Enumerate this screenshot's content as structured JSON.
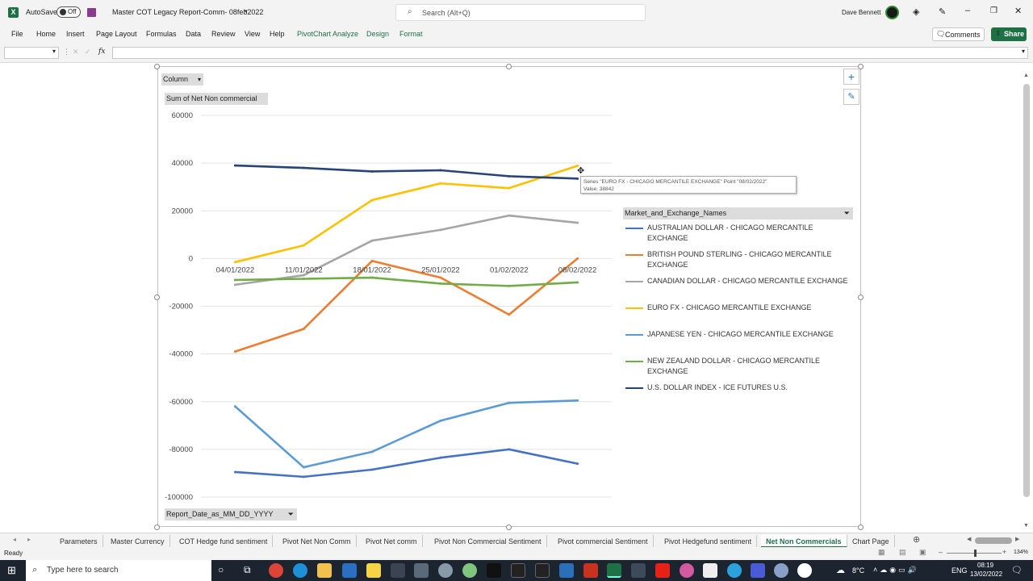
{
  "app": {
    "autosave_label": "AutoSave",
    "autosave_state": "Off",
    "title": "Master COT Legacy Report-Comm- 08feb2022",
    "search_placeholder": "Search (Alt+Q)",
    "user_name": "Dave Bennett",
    "comments_label": "Comments",
    "share_label": "Share"
  },
  "menu": [
    "File",
    "Home",
    "Insert",
    "Page Layout",
    "Formulas",
    "Data",
    "Review",
    "View",
    "Help",
    "PivotChart Analyze",
    "Design",
    "Format"
  ],
  "formula_bar": {
    "name_box": "",
    "fx": "fx",
    "formula": ""
  },
  "pivot_buttons": {
    "chart_type": "Column",
    "value_field": "Sum of Net Non commercial",
    "axis_field": "Report_Date_as_MM_DD_YYYY",
    "legend_field": "Market_and_Exchange_Names"
  },
  "tooltip": {
    "line1": "Series \"EURO FX - CHICAGO MERCANTILE EXCHANGE\" Point \"08/02/2022\"",
    "line2": "Value: 38842"
  },
  "chart_data": {
    "type": "line",
    "categories": [
      "04/01/2022",
      "11/01/2022",
      "18/01/2022",
      "25/01/2022",
      "01/02/2022",
      "08/02/2022"
    ],
    "ylim": [
      -100000,
      60000
    ],
    "yticks": [
      60000,
      40000,
      20000,
      0,
      -20000,
      -40000,
      -60000,
      -80000,
      -100000
    ],
    "grid": true,
    "legend_position": "right",
    "series": [
      {
        "name": "AUSTRALIAN DOLLAR - CHICAGO MERCANTILE EXCHANGE",
        "color": "#4472c4",
        "values": [
          -89500,
          -91500,
          -88500,
          -83500,
          -80000,
          -86000
        ]
      },
      {
        "name": "BRITISH POUND STERLING - CHICAGO MERCANTILE EXCHANGE",
        "color": "#ed7d31",
        "values": [
          -39000,
          -29500,
          -1000,
          -8000,
          -23500,
          0
        ]
      },
      {
        "name": "CANADIAN DOLLAR - CHICAGO MERCANTILE EXCHANGE",
        "color": "#a5a5a5",
        "values": [
          -11000,
          -7000,
          7500,
          12000,
          18000,
          15000
        ]
      },
      {
        "name": "EURO FX - CHICAGO MERCANTILE EXCHANGE",
        "color": "#ffc000",
        "values": [
          -1500,
          5500,
          24500,
          31500,
          29500,
          38842
        ]
      },
      {
        "name": "JAPANESE YEN - CHICAGO MERCANTILE EXCHANGE",
        "color": "#5b9bd5",
        "values": [
          -62000,
          -87500,
          -81000,
          -68000,
          -60500,
          -59500
        ]
      },
      {
        "name": "NEW ZEALAND DOLLAR - CHICAGO MERCANTILE EXCHANGE",
        "color": "#70ad47",
        "values": [
          -9000,
          -8500,
          -8000,
          -10500,
          -11500,
          -10000
        ]
      },
      {
        "name": "U.S. DOLLAR INDEX - ICE FUTURES U.S.",
        "color": "#264478",
        "values": [
          39000,
          38000,
          36500,
          37000,
          34500,
          33500
        ]
      }
    ]
  },
  "sheet_tabs": [
    "Parameters",
    "Master Currency",
    "COT Hedge fund sentiment",
    "Pivot Net Non Comm",
    "Pivot Net comm",
    "Pivot Non Commercial Sentiment",
    "Pivot commercial Sentiment",
    "Pivot Hedgefund sentiment",
    "Net Non Commercials",
    "Chart Page"
  ],
  "active_sheet": "Net Non Commercials",
  "status": {
    "ready": "Ready",
    "zoom": "134%"
  },
  "taskbar": {
    "search_placeholder": "Type here to search",
    "temperature": "8°C",
    "language": "ENG",
    "time": "08:19",
    "date": "13/02/2022"
  }
}
